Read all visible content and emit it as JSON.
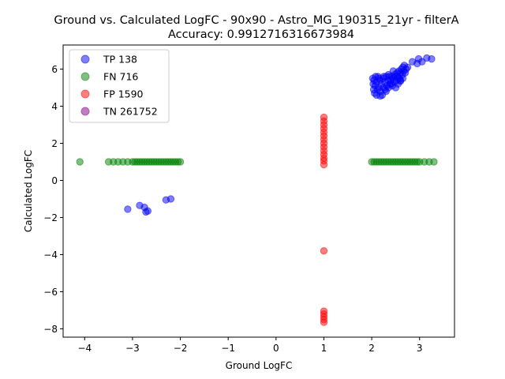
{
  "chart_data": {
    "type": "scatter",
    "title": "Ground vs. Calculated LogFC - 90x90 - Astro_MG_190315_21yr - filterA",
    "subtitle": "Accuracy: 0.9912716316673984",
    "xlabel": "Ground LogFC",
    "ylabel": "Calculated LogFC",
    "xlim": [
      -4.45,
      3.73
    ],
    "ylim": [
      -8.45,
      7.3
    ],
    "xticks": [
      -4,
      -3,
      -2,
      -1,
      0,
      1,
      2,
      3
    ],
    "yticks": [
      -8,
      -6,
      -4,
      -2,
      0,
      2,
      4,
      6
    ],
    "grid": false,
    "legend_position": "top-left",
    "series": [
      {
        "name": "TP 138",
        "color": "#0000ff",
        "points": [
          [
            -3.1,
            -1.55
          ],
          [
            -2.85,
            -1.35
          ],
          [
            -2.75,
            -1.45
          ],
          [
            -2.72,
            -1.7
          ],
          [
            -2.68,
            -1.65
          ],
          [
            -2.3,
            -1.05
          ],
          [
            -2.2,
            -1.0
          ],
          [
            2.02,
            5.5
          ],
          [
            2.03,
            5.2
          ],
          [
            2.04,
            4.9
          ],
          [
            2.05,
            5.4
          ],
          [
            2.06,
            4.7
          ],
          [
            2.07,
            5.1
          ],
          [
            2.08,
            5.6
          ],
          [
            2.1,
            5.3
          ],
          [
            2.12,
            4.9
          ],
          [
            2.13,
            5.6
          ],
          [
            2.15,
            5.0
          ],
          [
            2.17,
            5.4
          ],
          [
            2.18,
            4.8
          ],
          [
            2.2,
            5.2
          ],
          [
            2.22,
            4.6
          ],
          [
            2.24,
            5.5
          ],
          [
            2.25,
            5.0
          ],
          [
            2.27,
            5.3
          ],
          [
            2.28,
            4.9
          ],
          [
            2.3,
            5.6
          ],
          [
            2.32,
            5.1
          ],
          [
            2.34,
            5.4
          ],
          [
            2.35,
            5.0
          ],
          [
            2.37,
            5.6
          ],
          [
            2.38,
            5.2
          ],
          [
            2.4,
            5.4
          ],
          [
            2.42,
            5.6
          ],
          [
            2.43,
            5.1
          ],
          [
            2.45,
            5.5
          ],
          [
            2.47,
            5.3
          ],
          [
            2.48,
            5.7
          ],
          [
            2.5,
            5.6
          ],
          [
            2.52,
            5.4
          ],
          [
            2.53,
            5.8
          ],
          [
            2.55,
            5.6
          ],
          [
            2.57,
            5.9
          ],
          [
            2.58,
            5.5
          ],
          [
            2.6,
            5.8
          ],
          [
            2.6,
            5.4
          ],
          [
            2.62,
            6.0
          ],
          [
            2.64,
            5.7
          ],
          [
            2.65,
            6.1
          ],
          [
            2.67,
            5.9
          ],
          [
            2.68,
            6.2
          ],
          [
            2.7,
            5.8
          ],
          [
            2.72,
            6.0
          ],
          [
            2.5,
            5.0
          ],
          [
            2.55,
            5.2
          ],
          [
            2.65,
            5.5
          ],
          [
            2.45,
            5.9
          ],
          [
            2.35,
            5.7
          ],
          [
            2.25,
            5.6
          ],
          [
            2.15,
            5.5
          ],
          [
            2.85,
            6.4
          ],
          [
            2.95,
            6.3
          ],
          [
            2.98,
            6.55
          ],
          [
            3.05,
            6.4
          ],
          [
            3.15,
            6.6
          ],
          [
            3.25,
            6.55
          ],
          [
            2.1,
            4.6
          ],
          [
            2.18,
            4.55
          ],
          [
            2.3,
            4.8
          ],
          [
            2.4,
            5.2
          ],
          [
            2.6,
            5.35
          ],
          [
            2.75,
            6.1
          ]
        ]
      },
      {
        "name": "FN 716",
        "color": "#008000",
        "points": [
          [
            -4.1,
            1.0
          ],
          [
            -3.5,
            1.0
          ],
          [
            -3.4,
            1.0
          ],
          [
            -3.3,
            1.0
          ],
          [
            -3.2,
            1.0
          ],
          [
            -3.1,
            1.0
          ],
          [
            -3.0,
            1.0
          ],
          [
            -2.95,
            1.0
          ],
          [
            -2.9,
            1.0
          ],
          [
            -2.85,
            1.0
          ],
          [
            -2.8,
            1.0
          ],
          [
            -2.75,
            1.0
          ],
          [
            -2.7,
            1.0
          ],
          [
            -2.65,
            1.0
          ],
          [
            -2.6,
            1.0
          ],
          [
            -2.55,
            1.0
          ],
          [
            -2.5,
            1.0
          ],
          [
            -2.45,
            1.0
          ],
          [
            -2.4,
            1.0
          ],
          [
            -2.35,
            1.0
          ],
          [
            -2.3,
            1.0
          ],
          [
            -2.25,
            1.0
          ],
          [
            -2.2,
            1.0
          ],
          [
            -2.15,
            1.0
          ],
          [
            -2.1,
            1.0
          ],
          [
            -2.05,
            1.0
          ],
          [
            -2.0,
            1.0
          ],
          [
            2.0,
            1.0
          ],
          [
            2.05,
            1.0
          ],
          [
            2.1,
            1.0
          ],
          [
            2.15,
            1.0
          ],
          [
            2.2,
            1.0
          ],
          [
            2.25,
            1.0
          ],
          [
            2.3,
            1.0
          ],
          [
            2.35,
            1.0
          ],
          [
            2.4,
            1.0
          ],
          [
            2.45,
            1.0
          ],
          [
            2.5,
            1.0
          ],
          [
            2.55,
            1.0
          ],
          [
            2.6,
            1.0
          ],
          [
            2.65,
            1.0
          ],
          [
            2.7,
            1.0
          ],
          [
            2.75,
            1.0
          ],
          [
            2.8,
            1.0
          ],
          [
            2.85,
            1.0
          ],
          [
            2.9,
            1.0
          ],
          [
            2.95,
            1.0
          ],
          [
            3.0,
            1.0
          ],
          [
            3.1,
            1.0
          ],
          [
            3.2,
            1.0
          ],
          [
            3.3,
            1.0
          ]
        ]
      },
      {
        "name": "FP 1590",
        "color": "#ff0000",
        "points": [
          [
            1.0,
            3.4
          ],
          [
            1.0,
            3.2
          ],
          [
            1.0,
            3.0
          ],
          [
            1.0,
            2.8
          ],
          [
            1.0,
            2.6
          ],
          [
            1.0,
            2.4
          ],
          [
            1.0,
            2.2
          ],
          [
            1.0,
            2.0
          ],
          [
            1.0,
            1.8
          ],
          [
            1.0,
            1.6
          ],
          [
            1.0,
            1.4
          ],
          [
            1.0,
            1.2
          ],
          [
            1.0,
            1.05
          ],
          [
            1.0,
            0.85
          ],
          [
            1.0,
            -3.8
          ],
          [
            1.0,
            -7.05
          ],
          [
            1.0,
            -7.2
          ],
          [
            1.0,
            -7.35
          ],
          [
            1.0,
            -7.5
          ],
          [
            1.0,
            -7.65
          ]
        ]
      },
      {
        "name": "TN 261752",
        "color": "#800080",
        "points": []
      }
    ]
  }
}
